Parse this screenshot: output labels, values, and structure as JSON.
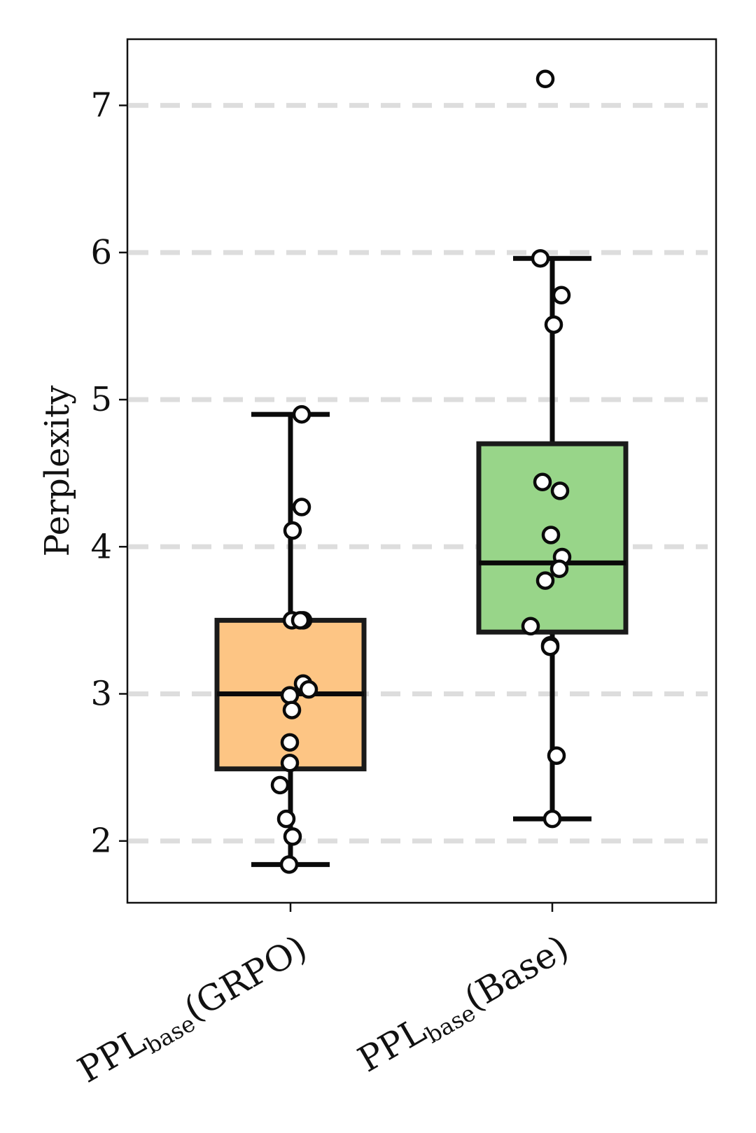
{
  "chart_data": {
    "type": "box",
    "ylabel": "Perplexity",
    "ylim": [
      1.58,
      7.45
    ],
    "yticks": [
      "2",
      "3",
      "4",
      "5",
      "6",
      "7"
    ],
    "grid": "horizontal dashed",
    "series": [
      {
        "label_main": "PPL",
        "label_sub": "base",
        "label_tail": "(GRPO)",
        "color": "#fdc584",
        "whisker_low": 1.84,
        "q1": 2.49,
        "median": 3.0,
        "q3": 3.5,
        "whisker_high": 4.9,
        "points": [
          4.9,
          4.27,
          4.11,
          3.5,
          3.5,
          3.5,
          3.07,
          3.03,
          2.99,
          2.89,
          2.67,
          2.53,
          2.38,
          2.15,
          2.03,
          1.84
        ]
      },
      {
        "label_main": "PPL",
        "label_sub": "base",
        "label_tail": "(Base)",
        "color": "#98d589",
        "whisker_low": 2.15,
        "q1": 3.42,
        "median": 3.89,
        "q3": 4.7,
        "whisker_high": 5.96,
        "points": [
          7.18,
          5.96,
          5.71,
          5.51,
          4.44,
          4.38,
          4.08,
          3.93,
          3.85,
          3.77,
          3.46,
          3.33,
          3.32,
          2.58,
          2.15
        ]
      }
    ]
  }
}
